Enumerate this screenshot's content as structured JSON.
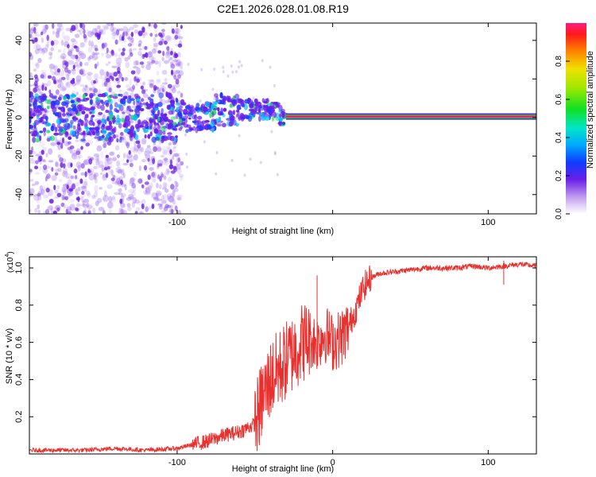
{
  "title": "C2E1.2026.028.01.08.R19",
  "colors": {
    "snr_line": "#e8302e",
    "background_trace": "#e8e2f8",
    "signal_trace": "#7a1fe0"
  },
  "chart_data": [
    {
      "type": "heatmap",
      "name": "spectrogram",
      "xlabel": "Height of straight line (km)",
      "ylabel": "Frequency (Hz)",
      "xlim": [
        -195,
        131
      ],
      "ylim": [
        -50,
        49
      ],
      "xticks": [
        -100,
        0,
        100
      ],
      "xtick_labels": [
        "-100",
        "",
        "100"
      ],
      "yticks": [
        -40,
        -20,
        0,
        20,
        40
      ],
      "ytick_labels": [
        "-40",
        "-20",
        "0",
        "20",
        "40"
      ],
      "colorbar": {
        "label": "Normalized spectral amplitude",
        "ticks": [
          0.0,
          0.2,
          0.4,
          0.6,
          0.8
        ],
        "tick_labels": [
          "0.0",
          "0.2",
          "0.4",
          "0.6",
          "0.8"
        ],
        "range": [
          0,
          1
        ]
      },
      "features": {
        "noise_region_km": [
          -195,
          -97
        ],
        "tone_start_km": -30,
        "tone_frequency_hz": 0.5
      }
    },
    {
      "type": "line",
      "name": "snr",
      "xlabel": "Height of straight line (km)",
      "ylabel": "SNR (10 * v/v)",
      "multiplier_label": "(x10",
      "multiplier_exponent": "4",
      "multiplier_close": ")",
      "xlim": [
        -195,
        131
      ],
      "ylim": [
        0,
        1.06
      ],
      "xticks": [
        -100,
        0,
        100
      ],
      "xtick_labels": [
        "-100",
        "0",
        "100"
      ],
      "yticks": [
        0.2,
        0.4,
        0.6,
        0.8,
        1.0
      ],
      "ytick_labels": [
        "0.2",
        "0.4",
        "0.6",
        "0.8",
        "1.0"
      ],
      "series": [
        {
          "name": "SNR",
          "x": [
            -195,
            -180,
            -160,
            -140,
            -120,
            -100,
            -90,
            -80,
            -70,
            -60,
            -50,
            -45,
            -40,
            -35,
            -30,
            -25,
            -20,
            -15,
            -10,
            -5,
            0,
            5,
            10,
            15,
            20,
            25,
            30,
            40,
            50,
            60,
            70,
            80,
            90,
            100,
            110,
            120,
            131
          ],
          "y": [
            0.02,
            0.02,
            0.02,
            0.03,
            0.02,
            0.03,
            0.05,
            0.07,
            0.1,
            0.12,
            0.16,
            0.3,
            0.4,
            0.45,
            0.5,
            0.55,
            0.6,
            0.62,
            0.6,
            0.65,
            0.6,
            0.62,
            0.68,
            0.78,
            0.9,
            0.95,
            0.97,
            0.98,
            0.99,
            1.0,
            1.0,
            1.0,
            1.01,
            1.0,
            1.01,
            1.02,
            1.01
          ]
        }
      ],
      "spikes": [
        {
          "x": -10,
          "y": 0.96
        },
        {
          "x": -25,
          "y": 0.64
        },
        {
          "x": 110,
          "y": 1.04
        }
      ]
    }
  ]
}
